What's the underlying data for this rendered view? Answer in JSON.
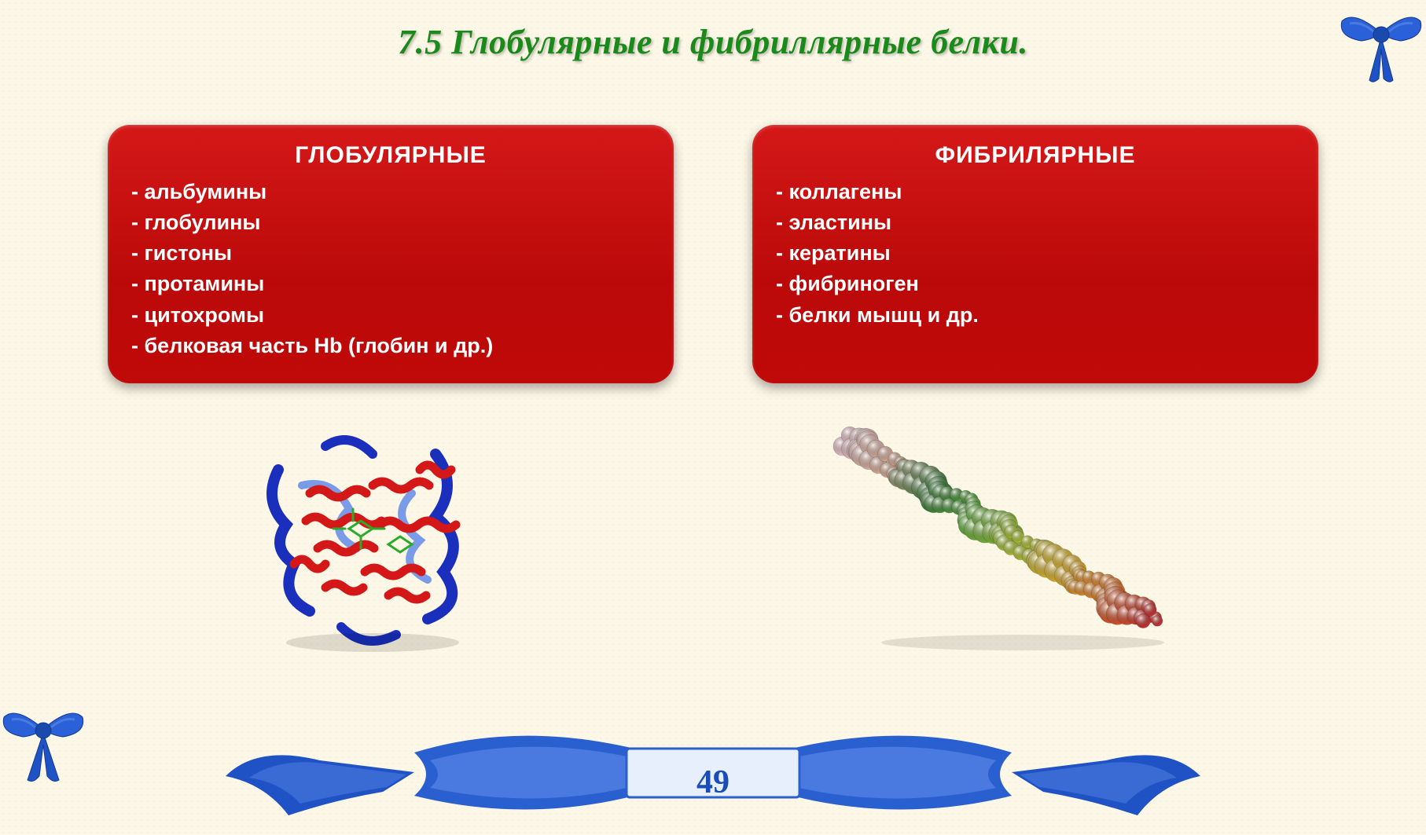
{
  "slide": {
    "title": "7.5 Глобулярные и фибриллярные белки.",
    "page_number": "49",
    "title_color": "#1a8a1a",
    "background_color": "#fdf7e8"
  },
  "cards": {
    "left": {
      "title": "ГЛОБУЛЯРНЫЕ",
      "items": [
        "альбумины",
        "глобулины",
        "гистоны",
        "протамины",
        "цитохромы",
        "белковая часть Hb (глобин и др.)"
      ],
      "bg_color": "#c40d0d",
      "text_color": "#ffffff"
    },
    "right": {
      "title": "ФИБРИЛЯРНЫЕ",
      "items": [
        "коллагены",
        "эластины",
        "кератины",
        "фибриноген",
        "белки мышц и др."
      ],
      "bg_color": "#c40d0d",
      "text_color": "#ffffff"
    }
  },
  "decor": {
    "bow_color": "#2056c9",
    "ribbon_color": "#1f52c4",
    "ribbon_inner": "#e8effc"
  },
  "proteins": {
    "globular": {
      "type": "ribbon-structure",
      "colors": [
        "#d41818",
        "#1a2fbb",
        "#7a9be8",
        "#2aaa2a"
      ]
    },
    "fibrillar": {
      "type": "space-filling-chain",
      "gradient_colors": [
        "#e8c0c8",
        "#d4a890",
        "#3a7a3a",
        "#5aaa3a",
        "#a8c030",
        "#d8b028",
        "#e07828",
        "#c83030"
      ]
    }
  }
}
